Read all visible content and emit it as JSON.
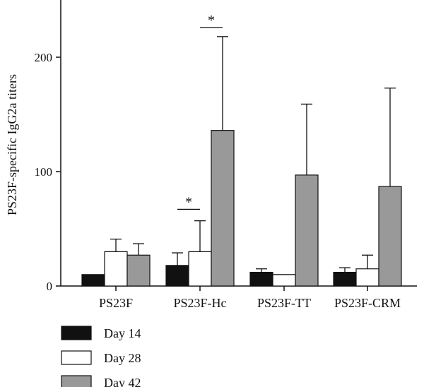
{
  "chart_data": {
    "type": "bar",
    "title": "",
    "xlabel": "",
    "ylabel": "PS23F-specific IgG2a titers",
    "ylim": [
      0,
      250
    ],
    "yticks": [
      0,
      100,
      200
    ],
    "grid": false,
    "legend_position": "bottom-left",
    "categories": [
      "PS23F",
      "PS23F-Hc",
      "PS23F-TT",
      "PS23F-CRM"
    ],
    "series": [
      {
        "name": "Day 14",
        "color": "#111111",
        "values": [
          10,
          18,
          12,
          12
        ],
        "errors": [
          0,
          11,
          3,
          4
        ]
      },
      {
        "name": "Day 28",
        "color": "#ffffff",
        "values": [
          30,
          30,
          10,
          15
        ],
        "errors": [
          11,
          27,
          0,
          12
        ]
      },
      {
        "name": "Day 42",
        "color": "#999999",
        "values": [
          27,
          136,
          97,
          87
        ],
        "errors": [
          10,
          82,
          62,
          86
        ]
      }
    ],
    "annotations": [
      {
        "text": "*",
        "category": 1,
        "from_series": 0,
        "to_series": 1,
        "level": 67
      },
      {
        "text": "*",
        "category": 1,
        "from_series": 1,
        "to_series": 2,
        "level": 226
      }
    ]
  }
}
